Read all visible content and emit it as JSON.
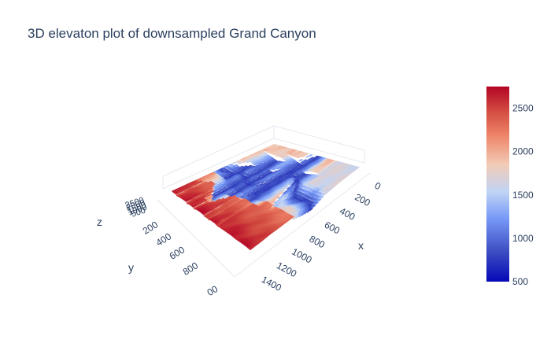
{
  "chart_data": {
    "type": "surface",
    "title": "3D elevaton plot of downsampled Grand Canyon",
    "xlabel": "x",
    "ylabel": "y",
    "zlabel": "z",
    "x_ticks": [
      "0",
      "200",
      "400",
      "600",
      "800",
      "1000",
      "1200",
      "1400"
    ],
    "y_ticks": [
      "200",
      "400",
      "600",
      "800",
      "1000"
    ],
    "y_tick_partial_text": "00",
    "z_ticks_overlapping": [
      "2500",
      "2000",
      "1500",
      "1000",
      "500"
    ],
    "xlim": [
      0,
      1400
    ],
    "ylim": [
      0,
      1000
    ],
    "zlim": [
      500,
      2750
    ],
    "colorscale": [
      "#0508b8",
      "#3b4cc0",
      "#7597f6",
      "#c0d4f5",
      "#f2cbb7",
      "#ee8468",
      "#d1493f",
      "#b40426"
    ],
    "colorbar": {
      "ticks": [
        "2500",
        "2000",
        "1500",
        "1000",
        "500"
      ],
      "range": [
        500,
        2750
      ]
    },
    "colorbar_ticks": [
      2500,
      2000,
      1500,
      1000,
      500
    ],
    "description_of_surface": "Downsampled elevation grid of the Grand Canyon; high plateau (~2600) in foreground, canyon floor (~700-1000) winding through center, mid plateau (~1900) in background."
  }
}
